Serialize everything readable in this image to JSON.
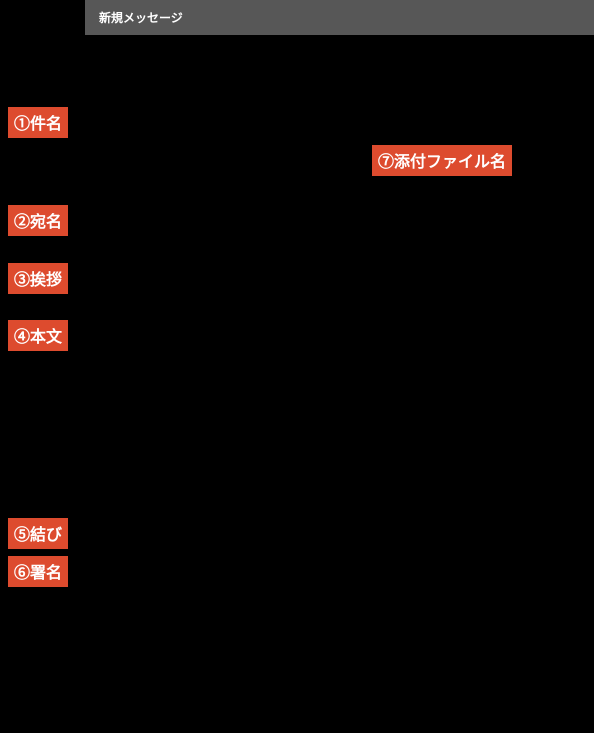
{
  "header": {
    "title": "新規メッセージ",
    "background_color": "#575757",
    "text_color": "#ffffff"
  },
  "labels": {
    "subject": "①件名",
    "attachment": "⑦添付ファイル名",
    "address": "②宛名",
    "greeting": "③挨拶",
    "body": "④本文",
    "closing": "⑤結び",
    "signature": "⑥署名"
  },
  "styling": {
    "label_background_color": "#dd4b2e",
    "label_text_color": "#ffffff",
    "page_background_color": "#000000",
    "label_font_size": 16,
    "header_font_size": 12
  },
  "type": "infographic",
  "description": "Email composition annotation diagram with numbered labels"
}
